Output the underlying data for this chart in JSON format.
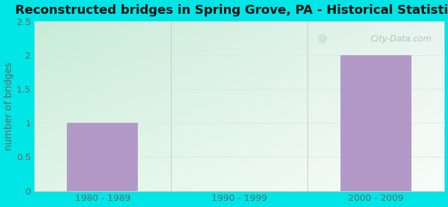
{
  "title": "Reconstructed bridges in Spring Grove, PA - Historical Statistics",
  "categories": [
    "1980 - 1989",
    "1990 - 1999",
    "2000 - 2009"
  ],
  "values": [
    1,
    0,
    2
  ],
  "bar_color": "#b399c8",
  "ylabel": "number of bridges",
  "ylim": [
    0,
    2.5
  ],
  "yticks": [
    0,
    0.5,
    1,
    1.5,
    2,
    2.5
  ],
  "background_outer": "#00e5e5",
  "background_plot_topleft": "#c8ecd8",
  "background_plot_topright": "#e8f4f0",
  "background_plot_bottomleft": "#e0f5e8",
  "background_plot_bottomright": "#f8fdf8",
  "grid_color": "#e0e8e0",
  "title_fontsize": 13,
  "axis_label_fontsize": 10,
  "tick_fontsize": 9.5,
  "watermark": "City-Data.com"
}
